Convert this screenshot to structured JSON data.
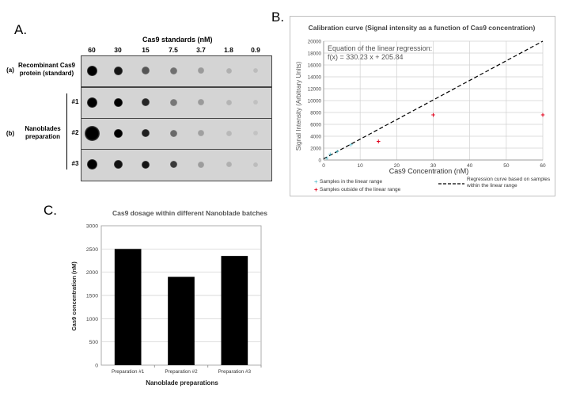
{
  "panel_a": {
    "letter": "A.",
    "title": "Cas9 standards (nM)",
    "concentrations": [
      "60",
      "30",
      "15",
      "7.5",
      "3.7",
      "1.8",
      "0.9"
    ],
    "row_a_tag": "(a)",
    "row_a_label": "Recombinant Cas9 protein (standard)",
    "row_b_tag": "(b)",
    "row_b_label": "Nanoblades preparation",
    "sub_rows": [
      "#1",
      "#2",
      "#3"
    ]
  },
  "chart_data": [
    {
      "panel": "B.",
      "type": "scatter",
      "title": "Calibration curve (Signal intensity as a function of Cas9 concentration)",
      "xlabel": "Cas9 Concentration (nM)",
      "ylabel": "Signal Intensity (Arbitrary Units)",
      "xlim": [
        0,
        60
      ],
      "ylim": [
        0,
        20000
      ],
      "xticks": [
        0,
        10,
        20,
        30,
        40,
        50,
        60
      ],
      "yticks": [
        0,
        2000,
        4000,
        6000,
        8000,
        10000,
        12000,
        14000,
        16000,
        18000,
        20000
      ],
      "equation_title": "Equation of the linear regression:",
      "equation": "f(x) = 330.23 x + 205.84",
      "regression": {
        "slope": 330.23,
        "intercept": 205.84,
        "color": "#000000"
      },
      "series": [
        {
          "name": "Samples in the linear range",
          "color": "#3bb3c3",
          "points": [
            [
              0.9,
              300
            ],
            [
              1.8,
              950
            ],
            [
              3.7,
              1400
            ],
            [
              7.5,
              2550
            ]
          ]
        },
        {
          "name": "Samples outside of the linear range",
          "color": "#e0001b",
          "points": [
            [
              15,
              3150
            ],
            [
              30,
              7600
            ],
            [
              60,
              7600
            ]
          ]
        }
      ],
      "regression_legend": "Regression curve based on samples within the linear range"
    },
    {
      "panel": "C.",
      "type": "bar",
      "title": "Cas9 dosage within different Nanoblade batches",
      "categories": [
        "Preparation #1",
        "Preparation #2",
        "Preparation #3"
      ],
      "values": [
        2500,
        1900,
        2350
      ],
      "xlabel": "Nanoblade preparations",
      "ylabel": "Cas9 concentration (nM)",
      "ylim": [
        0,
        3000
      ],
      "yticks": [
        0,
        500,
        1000,
        1500,
        2000,
        2500,
        3000
      ],
      "bar_color": "#000000"
    }
  ]
}
